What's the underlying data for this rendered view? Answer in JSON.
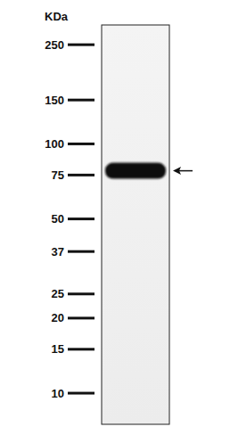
{
  "chart_data": {
    "type": "blot",
    "y_label": "KDa",
    "ylim": [
      7.5,
      300
    ],
    "yticks": [
      250,
      150,
      100,
      75,
      50,
      37,
      25,
      20,
      15,
      10
    ],
    "log": "y",
    "bands": [
      78
    ],
    "color": "#111111"
  }
}
